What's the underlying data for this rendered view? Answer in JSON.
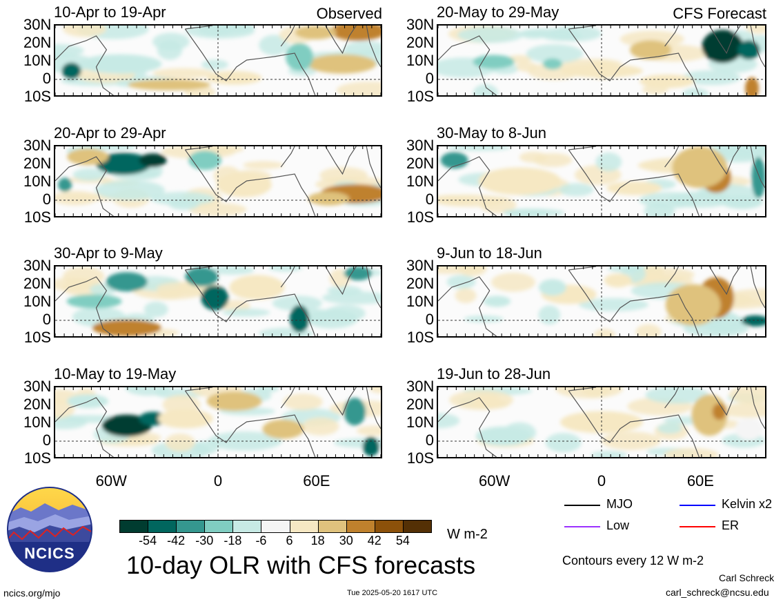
{
  "chart_data": {
    "type": "heatmap",
    "title": "10-day OLR with CFS forecasts",
    "units": "W m-2",
    "lat_ticks": [
      "30N",
      "20N",
      "10N",
      "0",
      "10S"
    ],
    "lon_ticks": [
      "60W",
      "0",
      "60E"
    ],
    "panels": [
      {
        "title": "10-Apr to 19-Apr",
        "tag": "Observed"
      },
      {
        "title": "20-Apr to 29-Apr",
        "tag": ""
      },
      {
        "title": "30-Apr to 9-May",
        "tag": ""
      },
      {
        "title": "10-May to 19-May",
        "tag": ""
      },
      {
        "title": "20-May to 29-May",
        "tag": "CFS Forecast"
      },
      {
        "title": "30-May to 8-Jun",
        "tag": ""
      },
      {
        "title": "9-Jun to 18-Jun",
        "tag": ""
      },
      {
        "title": "19-Jun to 28-Jun",
        "tag": ""
      }
    ],
    "colorbar": {
      "ticks": [
        "-54",
        "-42",
        "-30",
        "-18",
        "-6",
        "6",
        "18",
        "30",
        "42",
        "54"
      ],
      "colors": [
        "#003c30",
        "#01665e",
        "#35978f",
        "#80cdc1",
        "#c7eae5",
        "#f5f5f5",
        "#f6e8c3",
        "#dfc27d",
        "#bf812d",
        "#8c510a",
        "#543005"
      ]
    },
    "legend": [
      {
        "label": "MJO",
        "color": "#000000"
      },
      {
        "label": "Kelvin x2",
        "color": "#0000ff"
      },
      {
        "label": "Low",
        "color": "#9b30ff"
      },
      {
        "label": "ER",
        "color": "#ff0000"
      }
    ],
    "contour_note": "Contours every 12 W m-2"
  },
  "footer": {
    "logo_text": "NCICS",
    "url": "ncics.org/mjo",
    "timestamp": "Tue 2025-05-20 1617 UTC",
    "author": "Carl Schreck",
    "email": "carl_schreck@ncsu.edu"
  }
}
